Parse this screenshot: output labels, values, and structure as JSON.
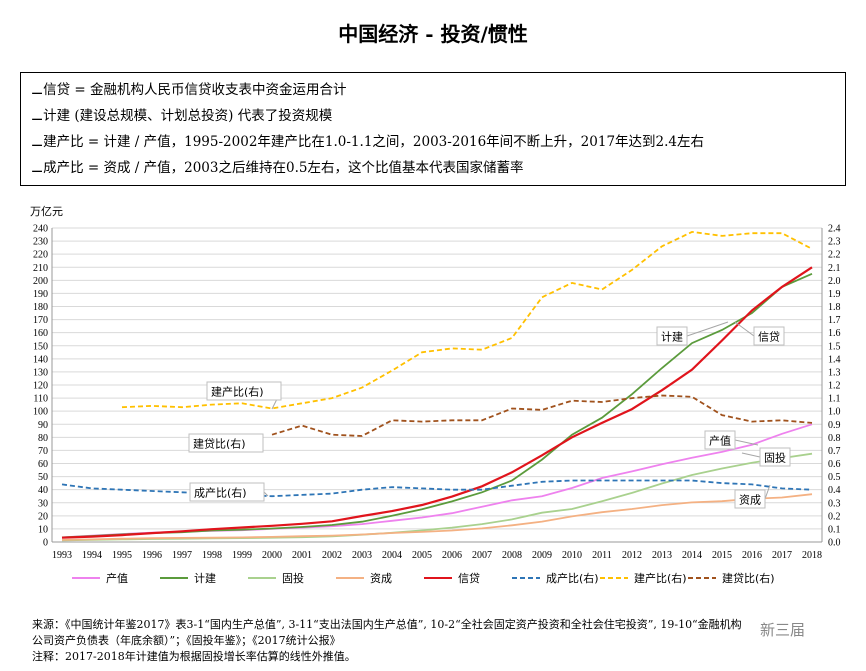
{
  "title": "中国经济 - 投资/惯性",
  "notes": [
    "⚊信贷 = 金融机构人民币信贷收支表中资金运用合计",
    "⚊计建 (建设总规模、计划总投资) 代表了投资规模",
    "⚊建产比 = 计建 / 产值，1995-2002年建产比在1.0-1.1之间，2003-2016年间不断上升，2017年达到2.4左右",
    "⚊成产比 = 资成 / 产值，2003之后维持在0.5左右，这个比值基本代表国家储蓄率"
  ],
  "source": {
    "line1": "来源：《中国统计年鉴2017》表3-1“国内生产总值”, 3-11“支出法国内生产总值”, 10-2“全社会固定资产投资和全社会住宅投资”, 19-10“金融机构",
    "line2": "公司资产负债表（年底余额）”；《固投年鉴》；《2017统计公报》",
    "line3": "注释：2017-2018年计建值为根据固投增长率估算的线性外推值。"
  },
  "watermark": "新三届",
  "colors": {
    "产值": "#ee82ee",
    "计建": "#5b9b3c",
    "固投": "#a9d18e",
    "资成": "#f4b183",
    "信贷": "#e0141c",
    "成产比": "#2e75b6",
    "建产比": "#ffc000",
    "建贷比": "#a0521d"
  },
  "chart_data": {
    "type": "line",
    "y_left_unit": "万亿元",
    "ylim_left": [
      0,
      240
    ],
    "ylim_right": [
      0,
      2.4
    ],
    "y_left_ticks": [
      0,
      10,
      20,
      30,
      40,
      50,
      60,
      70,
      80,
      90,
      100,
      110,
      120,
      130,
      140,
      150,
      160,
      170,
      180,
      190,
      200,
      210,
      220,
      230,
      240
    ],
    "y_right_ticks": [
      "0.0",
      "0.1",
      "0.2",
      "0.3",
      "0.4",
      "0.5",
      "0.6",
      "0.7",
      "0.8",
      "0.9",
      "1.0",
      "1.1",
      "1.2",
      "1.3",
      "1.4",
      "1.5",
      "1.6",
      "1.7",
      "1.8",
      "1.9",
      "2.0",
      "2.1",
      "2.2",
      "2.3",
      "2.4"
    ],
    "x": [
      1993,
      1994,
      1995,
      1996,
      1997,
      1998,
      1999,
      2000,
      2001,
      2002,
      2003,
      2004,
      2005,
      2006,
      2007,
      2008,
      2009,
      2010,
      2011,
      2012,
      2013,
      2014,
      2015,
      2016,
      2017,
      2018
    ],
    "grid": true,
    "legend_position": "bottom",
    "series": [
      {
        "name": "产值",
        "axis": "left",
        "style": "solid",
        "values": [
          3.5,
          4.8,
          6.1,
          7.2,
          7.9,
          8.5,
          9.0,
          10.0,
          11.0,
          12.1,
          13.7,
          16.2,
          18.7,
          22.0,
          27.0,
          31.9,
          34.9,
          41.3,
          48.9,
          54.0,
          59.5,
          64.4,
          68.9,
          74.4,
          82.7,
          90.0
        ]
      },
      {
        "name": "计建",
        "axis": "left",
        "style": "solid",
        "values": [
          3.5,
          4.6,
          5.8,
          6.8,
          7.5,
          8.8,
          9.4,
          10.3,
          11.5,
          13.0,
          15.5,
          20.0,
          25.0,
          31.0,
          38.0,
          47.0,
          63.0,
          82.0,
          95.0,
          113.0,
          133.0,
          152.0,
          162.0,
          175.0,
          195.0,
          205.0
        ]
      },
      {
        "name": "固投",
        "axis": "left",
        "style": "solid",
        "values": [
          1.3,
          1.7,
          2.0,
          2.3,
          2.5,
          2.8,
          3.0,
          3.3,
          3.7,
          4.3,
          5.6,
          7.0,
          8.9,
          11.0,
          13.7,
          17.3,
          22.4,
          25.2,
          31.1,
          37.5,
          44.7,
          51.2,
          56.2,
          60.6,
          64.1,
          67.5
        ]
      },
      {
        "name": "资成",
        "axis": "left",
        "style": "solid",
        "values": [
          1.6,
          2.0,
          2.5,
          2.9,
          3.1,
          3.3,
          3.5,
          3.9,
          4.4,
          4.9,
          5.7,
          6.9,
          7.7,
          8.8,
          10.4,
          12.8,
          15.6,
          19.6,
          22.8,
          25.2,
          28.2,
          30.3,
          31.2,
          33.0,
          34.0,
          36.5
        ]
      },
      {
        "name": "信贷",
        "axis": "left",
        "style": "solid",
        "values": [
          3.3,
          4.1,
          5.3,
          6.8,
          8.2,
          9.8,
          11.1,
          12.4,
          13.9,
          15.8,
          19.9,
          23.6,
          28.3,
          34.7,
          42.6,
          53.3,
          66.3,
          80.0,
          91.0,
          101.6,
          116.0,
          131.7,
          154.0,
          177.0,
          195.0,
          210.0
        ]
      },
      {
        "name": "成产比(右)",
        "axis": "right",
        "style": "dashed",
        "values": [
          0.44,
          0.41,
          0.4,
          0.39,
          0.38,
          0.37,
          0.36,
          0.35,
          0.36,
          0.37,
          0.4,
          0.42,
          0.41,
          0.4,
          0.4,
          0.43,
          0.46,
          0.47,
          0.47,
          0.47,
          0.47,
          0.47,
          0.45,
          0.44,
          0.41,
          0.4
        ]
      },
      {
        "name": "建产比(右)",
        "axis": "right",
        "style": "dashed",
        "values": [
          null,
          null,
          1.03,
          1.04,
          1.03,
          1.05,
          1.06,
          1.02,
          1.06,
          1.1,
          1.18,
          1.31,
          1.45,
          1.48,
          1.47,
          1.56,
          1.87,
          1.98,
          1.93,
          2.08,
          2.26,
          2.37,
          2.34,
          2.36,
          2.36,
          2.24
        ]
      },
      {
        "name": "建贷比(右)",
        "axis": "right",
        "style": "dashed",
        "values": [
          null,
          null,
          null,
          null,
          null,
          null,
          null,
          0.82,
          0.89,
          0.82,
          0.81,
          0.93,
          0.92,
          0.93,
          0.93,
          1.02,
          1.01,
          1.08,
          1.07,
          1.1,
          1.12,
          1.11,
          0.97,
          0.92,
          0.93,
          0.91
        ]
      }
    ],
    "legend": [
      "产值",
      "计建",
      "固投",
      "资成",
      "信贷",
      "成产比(右)",
      "建产比(右)",
      "建贷比(右)"
    ],
    "annotations": [
      "建产比(右)",
      "建贷比(右)",
      "成产比(右)",
      "计建",
      "信贷",
      "产值",
      "固投",
      "资成"
    ]
  }
}
